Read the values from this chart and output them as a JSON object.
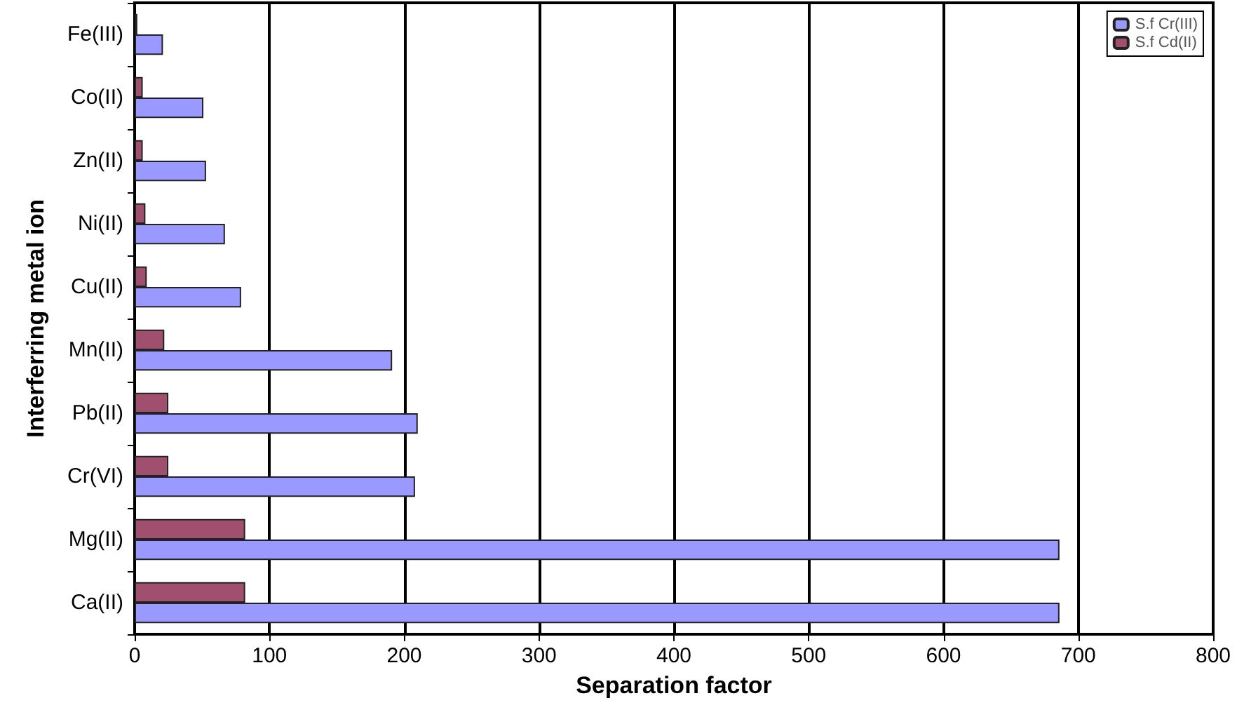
{
  "chart_data": {
    "type": "bar",
    "orientation": "horizontal",
    "xlabel": "Separation factor",
    "ylabel": "Interferring metal ion",
    "categories": [
      "Fe(III)",
      "Co(II)",
      "Zn(II)",
      "Ni(II)",
      "Cu(II)",
      "Mn(II)",
      "Pb(II)",
      "Cr(VI)",
      "Mg(II)",
      "Ca(II)"
    ],
    "series": [
      {
        "name": "S.f Cd(II)",
        "color": "#a0506e",
        "values": [
          2,
          6,
          6,
          8,
          9,
          22,
          25,
          25,
          82,
          82
        ]
      },
      {
        "name": "S.f Cr(III)",
        "color": "#9999ff",
        "values": [
          21,
          51,
          53,
          67,
          79,
          191,
          210,
          208,
          686,
          686
        ]
      }
    ],
    "xlim": [
      0,
      800
    ],
    "xticks": [
      0,
      100,
      200,
      300,
      400,
      500,
      600,
      700,
      800
    ],
    "grid": "x",
    "legend": "top right"
  }
}
